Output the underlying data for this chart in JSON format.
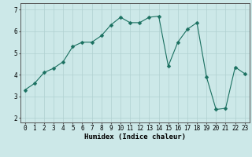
{
  "xlabel": "Humidex (Indice chaleur)",
  "ylabel": "",
  "x_values": [
    0,
    1,
    2,
    3,
    4,
    5,
    6,
    7,
    8,
    9,
    10,
    11,
    12,
    13,
    14,
    15,
    16,
    17,
    18,
    19,
    20,
    21,
    22,
    23
  ],
  "y_values": [
    3.3,
    3.6,
    4.1,
    4.3,
    4.6,
    5.3,
    5.5,
    5.5,
    5.8,
    6.3,
    6.65,
    6.4,
    6.4,
    6.65,
    6.7,
    4.4,
    5.5,
    6.1,
    6.4,
    3.9,
    2.4,
    2.45,
    4.35,
    4.05
  ],
  "line_color": "#1a7060",
  "marker_color": "#1a7060",
  "bg_color": "#cce8e8",
  "grid_color": "#b0d0d0",
  "axis_color": "#555555",
  "xlim": [
    -0.5,
    23.5
  ],
  "ylim": [
    1.8,
    7.3
  ],
  "yticks": [
    2,
    3,
    4,
    5,
    6,
    7
  ],
  "xticks": [
    0,
    1,
    2,
    3,
    4,
    5,
    6,
    7,
    8,
    9,
    10,
    11,
    12,
    13,
    14,
    15,
    16,
    17,
    18,
    19,
    20,
    21,
    22,
    23
  ],
  "xlabel_fontsize": 6.5,
  "tick_fontsize": 5.5,
  "marker_size": 2.5,
  "linewidth": 0.8
}
